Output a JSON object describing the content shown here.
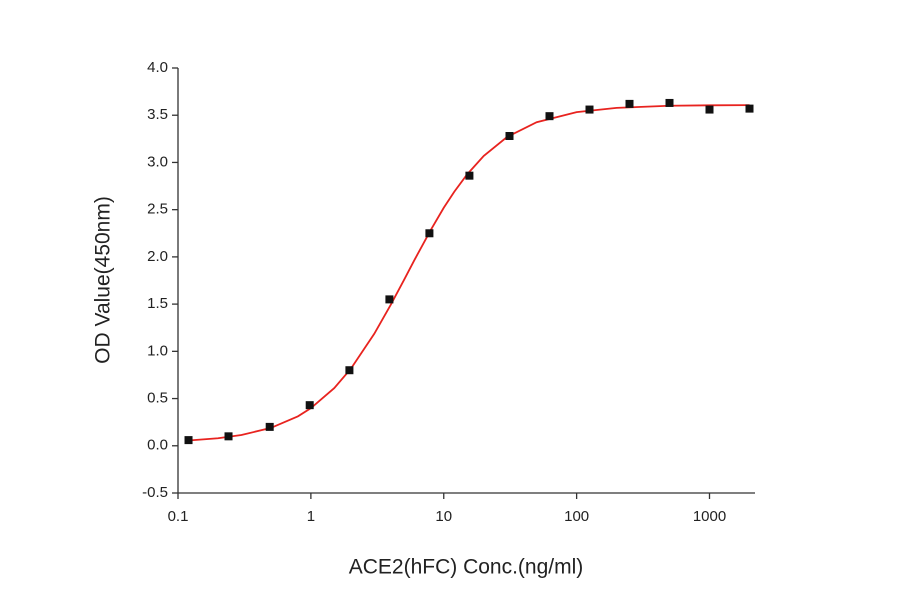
{
  "chart_data": {
    "type": "scatter",
    "x_label": "ACE2(hFC) Conc.(ng/ml)",
    "y_label": "OD Value(450nm)",
    "x_log": true,
    "xlim": [
      0.1,
      2200
    ],
    "xticks": [
      0.1,
      1,
      10,
      100,
      1000
    ],
    "ylim": [
      -0.5,
      4.0
    ],
    "yticks": [
      -0.5,
      {
        "value": 0.0,
        "label": "0.0"
      },
      0.5,
      {
        "value": 1.0,
        "label": "1.0"
      },
      1.5,
      {
        "value": 2.0,
        "label": "2.0"
      },
      2.5,
      {
        "value": 3.0,
        "label": "3.0"
      },
      3.5,
      {
        "value": 4.0,
        "label": "4.0"
      }
    ],
    "series": [
      {
        "type": "scatter",
        "color": "#111111",
        "x": [
          0.12,
          0.24,
          0.49,
          0.98,
          1.95,
          3.9,
          7.8,
          15.6,
          31.25,
          62.5,
          125,
          250,
          500,
          1000,
          2000
        ],
        "values": [
          0.06,
          0.1,
          0.2,
          0.43,
          0.8,
          1.55,
          2.25,
          2.86,
          3.28,
          3.49,
          3.56,
          3.62,
          3.63,
          3.56,
          3.57
        ]
      },
      {
        "type": "line",
        "color": "#e8231f",
        "x": [
          0.12,
          0.2,
          0.3,
          0.5,
          0.8,
          1,
          1.5,
          2,
          3,
          4,
          5,
          6,
          8,
          10,
          12,
          15,
          20,
          30,
          50,
          100,
          200,
          500,
          1000,
          2000
        ],
        "values": [
          0.056,
          0.08,
          0.114,
          0.189,
          0.312,
          0.398,
          0.611,
          0.816,
          1.186,
          1.495,
          1.751,
          1.964,
          2.287,
          2.52,
          2.69,
          2.874,
          3.069,
          3.27,
          3.426,
          3.533,
          3.578,
          3.6,
          3.605,
          3.607
        ]
      }
    ]
  }
}
